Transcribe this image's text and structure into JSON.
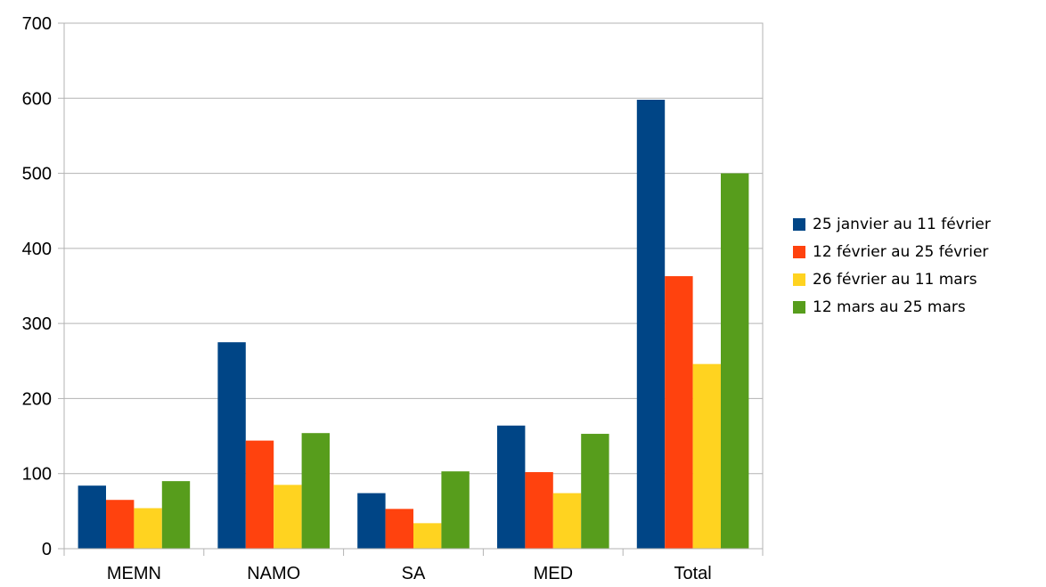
{
  "chart_data": {
    "type": "bar",
    "title": "",
    "xlabel": "",
    "ylabel": "",
    "categories": [
      "MEMN",
      "NAMO",
      "SA",
      "MED",
      "Total"
    ],
    "ylim": [
      0,
      700
    ],
    "yticks": [
      0,
      100,
      200,
      300,
      400,
      500,
      600,
      700
    ],
    "grid": true,
    "legend_position": "right",
    "series": [
      {
        "name": "25 janvier au 11 février",
        "color": "#004586",
        "values": [
          84,
          275,
          74,
          164,
          598
        ]
      },
      {
        "name": "12 février au 25 février",
        "color": "#ff420e",
        "values": [
          65,
          144,
          53,
          102,
          363
        ]
      },
      {
        "name": "26 février au 11 mars",
        "color": "#ffd320",
        "values": [
          54,
          85,
          34,
          74,
          246
        ]
      },
      {
        "name": "12 mars au 25 mars",
        "color": "#579d1c",
        "values": [
          90,
          154,
          103,
          153,
          500
        ]
      }
    ]
  }
}
